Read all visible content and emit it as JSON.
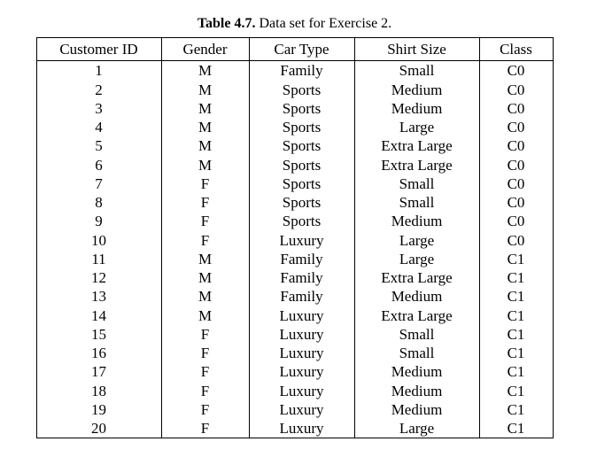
{
  "caption": {
    "prefix": "Table 4.7.",
    "rest": "  Data set for Exercise 2."
  },
  "table": {
    "type": "table",
    "background_color": "#ffffff",
    "border_color": "#000000",
    "font_family": "Times New Roman",
    "header_fontsize": 17,
    "cell_fontsize": 17,
    "columns": [
      {
        "label": "Customer ID",
        "width": 120,
        "align": "center"
      },
      {
        "label": "Gender",
        "width": 78,
        "align": "center"
      },
      {
        "label": "Car Type",
        "width": 98,
        "align": "center"
      },
      {
        "label": "Shirt Size",
        "width": 120,
        "align": "center"
      },
      {
        "label": "Class",
        "width": 62,
        "align": "center"
      }
    ],
    "rows": [
      [
        "1",
        "M",
        "Family",
        "Small",
        "C0"
      ],
      [
        "2",
        "M",
        "Sports",
        "Medium",
        "C0"
      ],
      [
        "3",
        "M",
        "Sports",
        "Medium",
        "C0"
      ],
      [
        "4",
        "M",
        "Sports",
        "Large",
        "C0"
      ],
      [
        "5",
        "M",
        "Sports",
        "Extra Large",
        "C0"
      ],
      [
        "6",
        "M",
        "Sports",
        "Extra Large",
        "C0"
      ],
      [
        "7",
        "F",
        "Sports",
        "Small",
        "C0"
      ],
      [
        "8",
        "F",
        "Sports",
        "Small",
        "C0"
      ],
      [
        "9",
        "F",
        "Sports",
        "Medium",
        "C0"
      ],
      [
        "10",
        "F",
        "Luxury",
        "Large",
        "C0"
      ],
      [
        "11",
        "M",
        "Family",
        "Large",
        "C1"
      ],
      [
        "12",
        "M",
        "Family",
        "Extra Large",
        "C1"
      ],
      [
        "13",
        "M",
        "Family",
        "Medium",
        "C1"
      ],
      [
        "14",
        "M",
        "Luxury",
        "Extra Large",
        "C1"
      ],
      [
        "15",
        "F",
        "Luxury",
        "Small",
        "C1"
      ],
      [
        "16",
        "F",
        "Luxury",
        "Small",
        "C1"
      ],
      [
        "17",
        "F",
        "Luxury",
        "Medium",
        "C1"
      ],
      [
        "18",
        "F",
        "Luxury",
        "Medium",
        "C1"
      ],
      [
        "19",
        "F",
        "Luxury",
        "Medium",
        "C1"
      ],
      [
        "20",
        "F",
        "Luxury",
        "Large",
        "C1"
      ]
    ]
  }
}
